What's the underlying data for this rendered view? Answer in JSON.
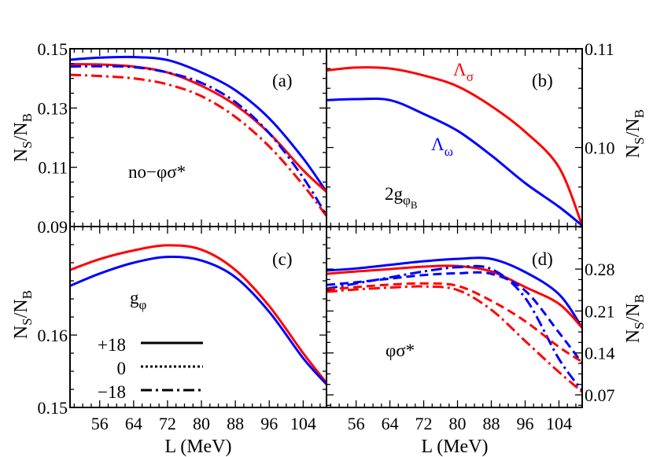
{
  "colors": {
    "red": "#ff0000",
    "blue": "#0000ff",
    "axis": "#000000"
  },
  "legend": {
    "title": "gφ",
    "entries": [
      {
        "label": "+18",
        "style": "solid"
      },
      {
        "label": "0",
        "style": "dotted"
      },
      {
        "label": "−18",
        "style": "dash-dot"
      }
    ]
  },
  "chart_data": [
    {
      "panel": "(a)",
      "type": "line",
      "annotation": "no−φσ*",
      "xlabel": "",
      "ylabel": "NS/NB",
      "ylabel_main": "N",
      "ylabel_sub1": "S",
      "ylabel_mid": "/N",
      "ylabel_sub2": "B",
      "xlim": [
        49,
        109.5
      ],
      "ylim": [
        0.09,
        0.15
      ],
      "xticks": [
        56,
        64,
        72,
        80,
        88,
        96,
        104
      ],
      "show_xtick_labels": false,
      "yticks": [
        "0.09",
        "0.11",
        "0.13",
        "0.15"
      ],
      "ytick_side": "left",
      "series": [
        {
          "color": "blue",
          "style": "solid",
          "x": [
            49,
            56,
            64,
            72,
            80,
            88,
            96,
            104,
            109.5
          ],
          "y": [
            0.1463,
            0.147,
            0.1472,
            0.1462,
            0.142,
            0.136,
            0.1265,
            0.113,
            0.1017
          ]
        },
        {
          "color": "red",
          "style": "solid",
          "x": [
            49,
            56,
            64,
            72,
            80,
            88,
            96,
            104,
            109.5
          ],
          "y": [
            0.1448,
            0.1447,
            0.144,
            0.142,
            0.1375,
            0.131,
            0.1215,
            0.109,
            0.1017
          ]
        },
        {
          "color": "blue",
          "style": "dash-dot",
          "x": [
            49,
            56,
            64,
            72,
            80,
            88,
            96,
            104,
            109.5
          ],
          "y": [
            0.144,
            0.1441,
            0.1438,
            0.142,
            0.1385,
            0.132,
            0.1215,
            0.1065,
            0.0937
          ]
        },
        {
          "color": "red",
          "style": "dash-dot",
          "x": [
            49,
            56,
            64,
            72,
            80,
            88,
            96,
            104,
            109.5
          ],
          "y": [
            0.1412,
            0.1408,
            0.14,
            0.138,
            0.134,
            0.127,
            0.117,
            0.104,
            0.0935
          ]
        }
      ]
    },
    {
      "panel": "(b)",
      "type": "line",
      "annotation": "2g",
      "annotation_sub": "φ",
      "annotation_subsub": "B",
      "label_red": "Λ",
      "label_red_sub": "σ",
      "label_blue": "Λ",
      "label_blue_sub": "ω",
      "xlabel": "",
      "ylabel": "NS/NB",
      "ylabel_main": "N",
      "ylabel_sub1": "S",
      "ylabel_mid": "/N",
      "ylabel_sub2": "B",
      "xlim": [
        49,
        109.5
      ],
      "ylim": [
        0.092,
        0.11
      ],
      "xticks": [
        56,
        64,
        72,
        80,
        88,
        96,
        104
      ],
      "show_xtick_labels": false,
      "yticks": [
        "0.10",
        "0.11"
      ],
      "ytick_side": "right",
      "series": [
        {
          "color": "red",
          "style": "solid",
          "x": [
            49,
            56,
            64,
            72,
            80,
            88,
            96,
            104,
            109.5
          ],
          "y": [
            0.1078,
            0.1081,
            0.108,
            0.1073,
            0.1062,
            0.1042,
            0.1016,
            0.098,
            0.0921
          ]
        },
        {
          "color": "blue",
          "style": "solid",
          "x": [
            49,
            56,
            64,
            72,
            80,
            88,
            96,
            104,
            109.5
          ],
          "y": [
            0.1048,
            0.1049,
            0.1048,
            0.1034,
            0.1017,
            0.0992,
            0.0964,
            0.094,
            0.0921
          ]
        }
      ]
    },
    {
      "panel": "(c)",
      "type": "line",
      "annotation": "g",
      "annotation_sub": "φ",
      "xlabel": "L (MeV)",
      "ylabel": "NS/NB",
      "ylabel_main": "N",
      "ylabel_sub1": "S",
      "ylabel_mid": "/N",
      "ylabel_sub2": "B",
      "xlim": [
        49,
        109.5
      ],
      "ylim": [
        0.15,
        0.175
      ],
      "xticks": [
        56,
        64,
        72,
        80,
        88,
        96,
        104
      ],
      "show_xtick_labels": true,
      "yticks": [
        "0.15",
        "0.16"
      ],
      "ytick_side": "left",
      "series": [
        {
          "color": "red",
          "style": "solid",
          "x": [
            49,
            56,
            64,
            72,
            80,
            88,
            96,
            104,
            109.5
          ],
          "y": [
            0.169,
            0.1705,
            0.1717,
            0.1724,
            0.1718,
            0.169,
            0.164,
            0.1575,
            0.1534
          ]
        },
        {
          "color": "blue",
          "style": "solid",
          "x": [
            49,
            56,
            64,
            72,
            80,
            88,
            96,
            104,
            109.5
          ],
          "y": [
            0.1668,
            0.1685,
            0.17,
            0.1708,
            0.1703,
            0.168,
            0.1632,
            0.1568,
            0.1532
          ]
        }
      ]
    },
    {
      "panel": "(d)",
      "type": "line",
      "annotation": "φσ*",
      "xlabel": "L (MeV)",
      "ylabel": "NS/NB",
      "ylabel_main": "N",
      "ylabel_sub1": "S",
      "ylabel_mid": "/N",
      "ylabel_sub2": "B",
      "xlim": [
        49,
        109.5
      ],
      "ylim": [
        0.049,
        0.351
      ],
      "xticks": [
        56,
        64,
        72,
        80,
        88,
        96,
        104
      ],
      "show_xtick_labels": true,
      "yticks": [
        "0.07",
        "0.14",
        "0.21",
        "0.28"
      ],
      "ytick_side": "right",
      "series": [
        {
          "color": "blue",
          "style": "solid",
          "x": [
            49,
            56,
            64,
            72,
            80,
            88,
            96,
            104,
            109.5
          ],
          "y": [
            0.2775,
            0.281,
            0.287,
            0.293,
            0.297,
            0.297,
            0.275,
            0.238,
            0.182
          ]
        },
        {
          "color": "red",
          "style": "solid",
          "x": [
            49,
            56,
            64,
            72,
            80,
            88,
            96,
            104,
            109.5
          ],
          "y": [
            0.272,
            0.276,
            0.28,
            0.284,
            0.285,
            0.276,
            0.25,
            0.222,
            0.182
          ]
        },
        {
          "color": "blue",
          "style": "dashed",
          "x": [
            49,
            56,
            64,
            72,
            80,
            88,
            96,
            104,
            109.5
          ],
          "y": [
            0.2535,
            0.258,
            0.264,
            0.27,
            0.273,
            0.272,
            0.244,
            0.174,
            0.123
          ]
        },
        {
          "color": "blue",
          "style": "dash-dot",
          "x": [
            49,
            56,
            64,
            72,
            80,
            88,
            96,
            104,
            109.5
          ],
          "y": [
            0.247,
            0.256,
            0.266,
            0.276,
            0.283,
            0.28,
            0.232,
            0.13,
            0.077
          ]
        },
        {
          "color": "red",
          "style": "dashed",
          "x": [
            49,
            56,
            64,
            72,
            80,
            88,
            96,
            104,
            109.5
          ],
          "y": [
            0.2455,
            0.25,
            0.254,
            0.256,
            0.252,
            0.227,
            0.193,
            0.15,
            0.125
          ]
        },
        {
          "color": "red",
          "style": "dash-dot",
          "x": [
            49,
            56,
            64,
            72,
            80,
            88,
            96,
            104,
            109.5
          ],
          "y": [
            0.242,
            0.246,
            0.249,
            0.251,
            0.245,
            0.212,
            0.16,
            0.108,
            0.075
          ]
        }
      ]
    }
  ]
}
